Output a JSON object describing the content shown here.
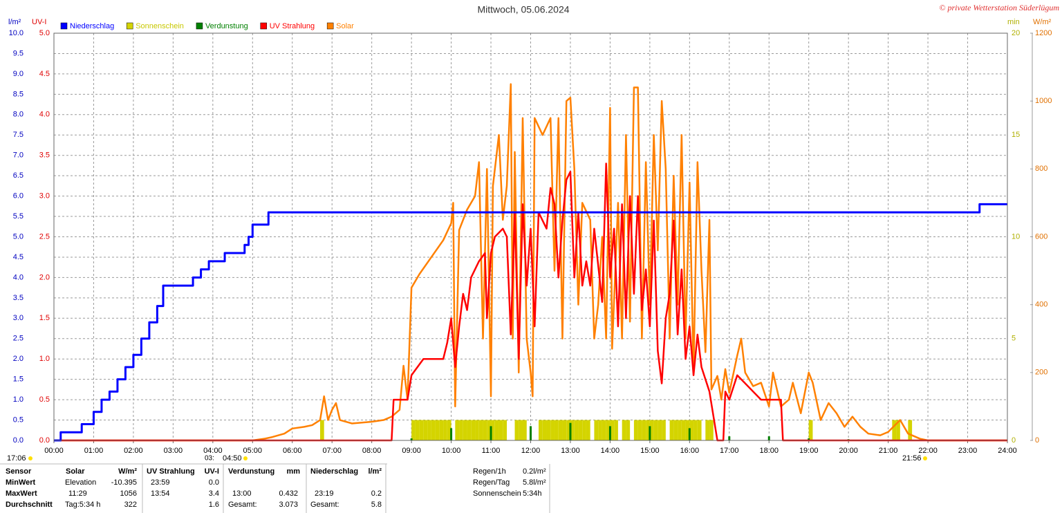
{
  "chart_data": {
    "type": "line",
    "title": "Mittwoch, 05.06.2024",
    "copyright": "© private Wetterstation Süderlügum",
    "units": {
      "y": "l/m²",
      "y2": "UV-I",
      "y3": "min",
      "y4": "W/m²"
    },
    "xlim": [
      0,
      24
    ],
    "xticks": [
      {
        "value": 0,
        "label": "00:00"
      },
      {
        "value": 1,
        "label": "01:00"
      },
      {
        "value": 2,
        "label": "02:00"
      },
      {
        "value": 3,
        "label": "03:00"
      },
      {
        "value": 4,
        "label": "04:00"
      },
      {
        "value": 5,
        "label": "05:00"
      },
      {
        "value": 6,
        "label": "06:00"
      },
      {
        "value": 7,
        "label": "07:00"
      },
      {
        "value": 8,
        "label": "08:00"
      },
      {
        "value": 9,
        "label": "09:00"
      },
      {
        "value": 10,
        "label": "10:00"
      },
      {
        "value": 11,
        "label": "11:00"
      },
      {
        "value": 12,
        "label": "12:00"
      },
      {
        "value": 13,
        "label": "13:00"
      },
      {
        "value": 14,
        "label": "14:00"
      },
      {
        "value": 15,
        "label": "15:00"
      },
      {
        "value": 16,
        "label": "16:00"
      },
      {
        "value": 17,
        "label": "17:00"
      },
      {
        "value": 18,
        "label": "18:00"
      },
      {
        "value": 19,
        "label": "19:00"
      },
      {
        "value": 20,
        "label": "20:00"
      },
      {
        "value": 21,
        "label": "21:00"
      },
      {
        "value": 22,
        "label": "22:00"
      },
      {
        "value": 23,
        "label": "23:00"
      },
      {
        "value": 24,
        "label": "24:00"
      }
    ],
    "ylim": [
      0,
      10
    ],
    "yticks": [
      {
        "value": 0,
        "label": "0.0"
      },
      0.5,
      {
        "value": 1,
        "label": "1.0"
      },
      1.5,
      {
        "value": 2,
        "label": "2.0"
      },
      2.5,
      {
        "value": 3,
        "label": "3.0"
      },
      3.5,
      {
        "value": 4,
        "label": "4.0"
      },
      4.5,
      {
        "value": 5,
        "label": "5.0"
      },
      5.5,
      {
        "value": 6,
        "label": "6.0"
      },
      6.5,
      {
        "value": 7,
        "label": "7.0"
      },
      7.5,
      {
        "value": 8,
        "label": "8.0"
      },
      8.5,
      {
        "value": 9,
        "label": "9.0"
      },
      9.5,
      {
        "value": 10,
        "label": "10.0"
      }
    ],
    "y2lim": [
      0,
      5
    ],
    "y2ticks": [
      {
        "value": 0,
        "label": "0.0"
      },
      0.5,
      {
        "value": 1,
        "label": "1.0"
      },
      1.5,
      {
        "value": 2,
        "label": "2.0"
      },
      2.5,
      {
        "value": 3,
        "label": "3.0"
      },
      3.5,
      {
        "value": 4,
        "label": "4.0"
      },
      4.5,
      {
        "value": 5,
        "label": "5.0"
      }
    ],
    "y3lim": [
      0,
      20
    ],
    "y3ticks": [
      0,
      5,
      10,
      15,
      20
    ],
    "y4lim": [
      0,
      1200
    ],
    "y4ticks": [
      0,
      200,
      400,
      600,
      800,
      1000,
      1200
    ],
    "grid": true,
    "series": [
      {
        "name": "Niederschlag",
        "color": "#0000ff",
        "axis": "y",
        "kind": "step",
        "x": [
          0,
          0.17,
          0.7,
          1.0,
          1.2,
          1.4,
          1.6,
          1.8,
          2.0,
          2.2,
          2.4,
          2.6,
          2.75,
          3.5,
          3.7,
          3.9,
          4.3,
          4.8,
          4.9,
          5.0,
          5.4,
          23.3,
          24
        ],
        "values": [
          0,
          0.2,
          0.4,
          0.7,
          1.0,
          1.2,
          1.5,
          1.8,
          2.1,
          2.5,
          2.9,
          3.3,
          3.8,
          4.0,
          4.2,
          4.4,
          4.6,
          4.8,
          5.0,
          5.3,
          5.6,
          5.8,
          5.8
        ]
      },
      {
        "name": "Sonnenschein",
        "color": "#d4d400",
        "axis": "y3",
        "kind": "bar",
        "x": [
          6.7,
          9.0,
          9.1,
          9.2,
          9.3,
          9.4,
          9.5,
          9.6,
          9.7,
          9.8,
          9.9,
          10.1,
          10.2,
          10.3,
          10.4,
          10.5,
          10.6,
          10.7,
          10.8,
          10.9,
          11.0,
          11.1,
          11.2,
          11.3,
          11.6,
          11.7,
          11.8,
          12.2,
          12.3,
          12.4,
          12.5,
          12.6,
          12.7,
          12.8,
          12.9,
          13.0,
          13.1,
          13.2,
          13.3,
          13.4,
          13.6,
          13.7,
          13.8,
          13.9,
          14.0,
          14.1,
          14.3,
          14.4,
          14.6,
          14.7,
          14.8,
          14.9,
          15.0,
          15.1,
          15.2,
          15.3,
          15.5,
          15.6,
          15.7,
          15.8,
          15.9,
          16.0,
          16.1,
          16.2,
          16.4,
          16.5,
          19.0,
          21.1,
          21.2,
          21.5
        ],
        "values": [
          1,
          1,
          1,
          1,
          1,
          1,
          1,
          1,
          1,
          1,
          1,
          1,
          1,
          1,
          1,
          1,
          1,
          1,
          1,
          1,
          1,
          1,
          1,
          1,
          1,
          1,
          1,
          1,
          1,
          1,
          1,
          1,
          1,
          1,
          1,
          1,
          1,
          1,
          1,
          1,
          1,
          1,
          1,
          1,
          1,
          1,
          1,
          1,
          1,
          1,
          1,
          1,
          1,
          1,
          1,
          1,
          1,
          1,
          1,
          1,
          1,
          1,
          1,
          1,
          1,
          1,
          1,
          1,
          1,
          1
        ]
      },
      {
        "name": "Verdunstung",
        "color": "#008000",
        "axis": "y",
        "kind": "spike",
        "x": [
          9,
          10,
          11,
          12,
          13,
          14,
          15,
          16,
          17,
          18,
          19,
          20,
          21
        ],
        "values": [
          0.05,
          0.3,
          0.35,
          0.35,
          0.43,
          0.35,
          0.35,
          0.3,
          0.1,
          0.1,
          0.05,
          0.03,
          0.02
        ]
      },
      {
        "name": "UV Strahlung",
        "color": "#ff0000",
        "axis": "y2",
        "kind": "line",
        "x": [
          0,
          8.5,
          8.55,
          8.9,
          9.0,
          9.3,
          9.8,
          9.9,
          10.0,
          10.1,
          10.2,
          10.3,
          10.4,
          10.5,
          10.7,
          10.85,
          10.9,
          11.0,
          11.1,
          11.3,
          11.4,
          11.5,
          11.6,
          11.7,
          11.8,
          11.9,
          12.0,
          12.1,
          12.2,
          12.4,
          12.5,
          12.6,
          12.7,
          12.8,
          12.9,
          13.0,
          13.1,
          13.2,
          13.3,
          13.4,
          13.5,
          13.6,
          13.8,
          13.9,
          14.0,
          14.1,
          14.2,
          14.3,
          14.4,
          14.5,
          14.6,
          14.7,
          14.8,
          14.9,
          15.0,
          15.1,
          15.2,
          15.3,
          15.4,
          15.5,
          15.6,
          15.7,
          15.8,
          15.9,
          16.0,
          16.1,
          16.2,
          16.3,
          16.5,
          16.6,
          16.7,
          16.85,
          16.9,
          17.0,
          17.2,
          17.4,
          17.6,
          17.8,
          18.3,
          18.35,
          24
        ],
        "values": [
          0,
          0,
          0.5,
          0.5,
          0.8,
          1.0,
          1.0,
          1.2,
          1.5,
          0.9,
          1.4,
          1.8,
          1.6,
          2.0,
          2.2,
          2.3,
          1.5,
          2.3,
          2.5,
          2.6,
          2.5,
          1.3,
          2.8,
          1.0,
          2.9,
          1.9,
          2.6,
          1.4,
          2.8,
          2.6,
          3.1,
          2.9,
          2.0,
          2.7,
          3.2,
          3.3,
          2.0,
          2.8,
          1.9,
          2.2,
          1.9,
          2.6,
          1.7,
          3.4,
          2.0,
          2.6,
          1.4,
          2.9,
          1.5,
          3.0,
          1.8,
          3.0,
          1.6,
          2.1,
          1.4,
          2.7,
          1.1,
          0.7,
          1.5,
          1.8,
          2.7,
          1.3,
          2.1,
          1.0,
          1.4,
          0.8,
          1.3,
          0.9,
          0.6,
          0.3,
          0,
          0,
          0.6,
          0.5,
          0.8,
          0.7,
          0.6,
          0.5,
          0.5,
          0,
          0
        ]
      },
      {
        "name": "Solar",
        "color": "#ff8000",
        "axis": "y4",
        "kind": "line",
        "x": [
          0,
          5.0,
          5.3,
          5.5,
          5.8,
          6.0,
          6.3,
          6.5,
          6.7,
          6.8,
          6.9,
          7.0,
          7.1,
          7.2,
          7.5,
          8.0,
          8.3,
          8.5,
          8.7,
          8.8,
          8.9,
          9.0,
          9.2,
          9.5,
          9.8,
          10.0,
          10.05,
          10.1,
          10.2,
          10.4,
          10.6,
          10.7,
          10.8,
          10.9,
          11.0,
          11.05,
          11.2,
          11.3,
          11.4,
          11.5,
          11.55,
          11.6,
          11.7,
          11.8,
          11.9,
          12.0,
          12.05,
          12.1,
          12.3,
          12.5,
          12.6,
          12.7,
          12.8,
          12.9,
          13.0,
          13.1,
          13.2,
          13.3,
          13.5,
          13.6,
          13.7,
          13.8,
          13.9,
          14.0,
          14.05,
          14.2,
          14.3,
          14.4,
          14.5,
          14.6,
          14.7,
          14.8,
          14.9,
          15.0,
          15.1,
          15.2,
          15.3,
          15.4,
          15.5,
          15.6,
          15.7,
          15.8,
          15.9,
          16.0,
          16.1,
          16.2,
          16.3,
          16.4,
          16.5,
          16.55,
          16.7,
          16.8,
          16.9,
          17.0,
          17.2,
          17.3,
          17.4,
          17.6,
          17.8,
          18.0,
          18.1,
          18.3,
          18.5,
          18.6,
          18.8,
          19.0,
          19.1,
          19.3,
          19.5,
          19.7,
          19.9,
          20.1,
          20.3,
          20.5,
          20.8,
          21.0,
          21.3,
          21.5,
          21.8,
          22.0,
          24
        ],
        "values": [
          0,
          0,
          5,
          10,
          20,
          35,
          40,
          45,
          60,
          130,
          60,
          90,
          110,
          60,
          50,
          55,
          60,
          70,
          90,
          220,
          120,
          450,
          490,
          540,
          590,
          640,
          700,
          100,
          620,
          680,
          720,
          820,
          300,
          800,
          130,
          750,
          900,
          650,
          750,
          1050,
          300,
          850,
          200,
          950,
          300,
          200,
          130,
          950,
          900,
          950,
          500,
          950,
          300,
          1000,
          1010,
          800,
          400,
          700,
          650,
          300,
          400,
          600,
          300,
          980,
          270,
          700,
          300,
          900,
          350,
          1040,
          1040,
          300,
          820,
          400,
          900,
          560,
          1000,
          800,
          300,
          780,
          400,
          900,
          300,
          760,
          200,
          820,
          500,
          260,
          650,
          150,
          190,
          120,
          210,
          140,
          250,
          300,
          200,
          160,
          170,
          100,
          200,
          100,
          120,
          170,
          80,
          200,
          170,
          60,
          110,
          80,
          40,
          70,
          40,
          20,
          15,
          25,
          60,
          20,
          5,
          0,
          0
        ]
      }
    ]
  },
  "sun_markers": [
    "17:06",
    "03:",
    "04:50",
    "21:56"
  ],
  "stats": {
    "header": {
      "sensor": "Sensor",
      "solar": "Solar",
      "solar_unit": "W/m²",
      "uv": "UV Strahlung",
      "uv_unit": "UV-I",
      "evap": "Verdunstung",
      "evap_unit": "mm",
      "rain": "Niederschlag",
      "rain_unit": "l/m²"
    },
    "min": {
      "sensor": "MinWert",
      "solar_time": "Elevation",
      "solar": "-10.395",
      "uv_time": "23:59",
      "uv": "0.0"
    },
    "max": {
      "sensor": "MaxWert",
      "solar_time": "11:29",
      "solar": "1056",
      "uv_time": "13:54",
      "uv": "3.4",
      "evap_time": "13:00",
      "evap": "0.432",
      "rain_time": "23:19",
      "rain": "0.2"
    },
    "avg": {
      "sensor": "Durchschnitt",
      "solar_time": "Tag:5:34 h",
      "solar": "322",
      "uv": "1.6",
      "evap_time": "Gesamt:",
      "evap": "3.073",
      "rain_time": "Gesamt:",
      "rain": "5.8"
    }
  },
  "summary": [
    {
      "label": "Regen/1h",
      "value": "0.2l/m²"
    },
    {
      "label": "Regen/Tag",
      "value": "5.8l/m²"
    },
    {
      "label": "Sonnenschein",
      "value": "5:34h"
    }
  ]
}
